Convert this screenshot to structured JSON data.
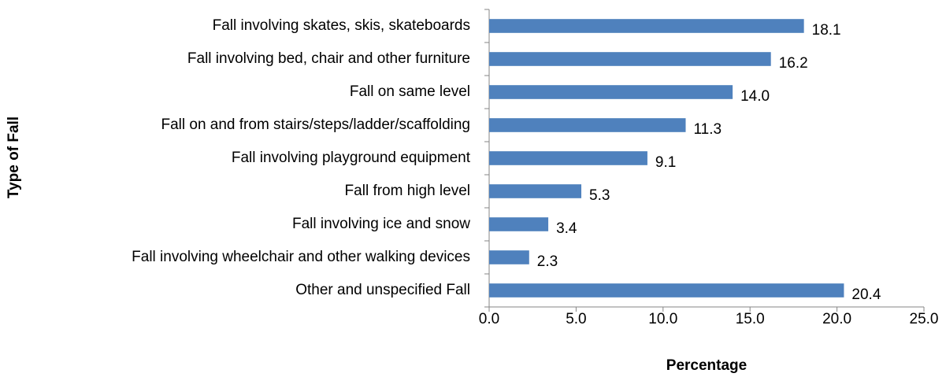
{
  "chart_data": {
    "type": "hbar",
    "categories": [
      "Fall involving skates, skis, skateboards",
      "Fall involving bed, chair and other furniture",
      "Fall on same level",
      "Fall on and from stairs/steps/ladder/scaffolding",
      "Fall involving playground equipment",
      "Fall from high level",
      "Fall involving ice and snow",
      "Fall involving wheelchair and other walking devices",
      "Other and unspecified Fall"
    ],
    "values": [
      18.1,
      16.2,
      14.0,
      11.3,
      9.1,
      5.3,
      3.4,
      2.3,
      20.4
    ],
    "value_labels": [
      "18.1",
      "16.2",
      "14.0",
      "11.3",
      "9.1",
      "5.3",
      "3.4",
      "2.3",
      "20.4"
    ],
    "color": "#4f81bd",
    "xlim": [
      0,
      25
    ],
    "xticks": [
      {
        "value": 0,
        "label": "0.0"
      },
      {
        "value": 5,
        "label": "5.0"
      },
      {
        "value": 10,
        "label": "10.0"
      },
      {
        "value": 15,
        "label": "15.0"
      },
      {
        "value": 20,
        "label": "20.0"
      },
      {
        "value": 25,
        "label": "25.0"
      }
    ],
    "xlabel": "Percentage",
    "ylabel": "Type of Fall",
    "grid": false
  }
}
